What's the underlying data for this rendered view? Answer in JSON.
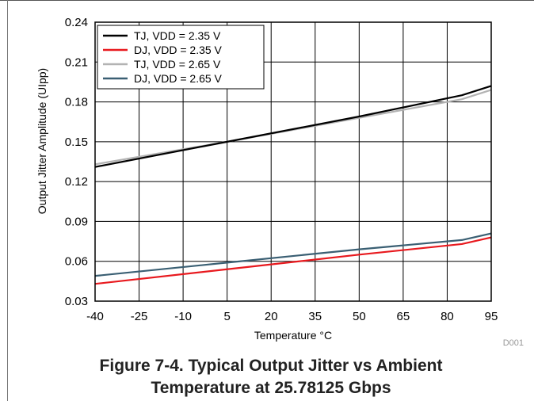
{
  "chart_data": {
    "type": "line",
    "xlabel": "Temperature °C",
    "ylabel": "Output Jitter Amplitude (UIpp)",
    "xlim": [
      -40,
      95
    ],
    "ylim": [
      0.03,
      0.24
    ],
    "xticks": [
      -40,
      -25,
      -10,
      5,
      20,
      35,
      50,
      65,
      80,
      95
    ],
    "yticks": [
      "0.03",
      "0.06",
      "0.09",
      "0.12",
      "0.15",
      "0.18",
      "0.21",
      "0.24"
    ],
    "grid": true,
    "legend_position": "top-left",
    "series": [
      {
        "name": "TJ, VDD = 2.35 V",
        "color": "#000000",
        "x": [
          -40,
          5,
          50,
          85,
          95
        ],
        "y": [
          0.131,
          0.15,
          0.169,
          0.185,
          0.192
        ]
      },
      {
        "name": "DJ, VDD = 2.35 V",
        "color": "#e8191e",
        "x": [
          -40,
          5,
          50,
          85,
          95
        ],
        "y": [
          0.043,
          0.054,
          0.065,
          0.073,
          0.078
        ]
      },
      {
        "name": "TJ, VDD = 2.65 V",
        "color": "#b3b3b3",
        "x": [
          -40,
          5,
          50,
          85,
          95
        ],
        "y": [
          0.133,
          0.15,
          0.168,
          0.182,
          0.189
        ]
      },
      {
        "name": "DJ, VDD = 2.65 V",
        "color": "#3a5f73",
        "x": [
          -40,
          5,
          50,
          85,
          95
        ],
        "y": [
          0.049,
          0.059,
          0.069,
          0.076,
          0.081
        ]
      }
    ],
    "note": "D001"
  },
  "caption": {
    "line1": "Figure 7-4. Typical Output Jitter vs Ambient",
    "line2": "Temperature at 25.78125 Gbps"
  }
}
